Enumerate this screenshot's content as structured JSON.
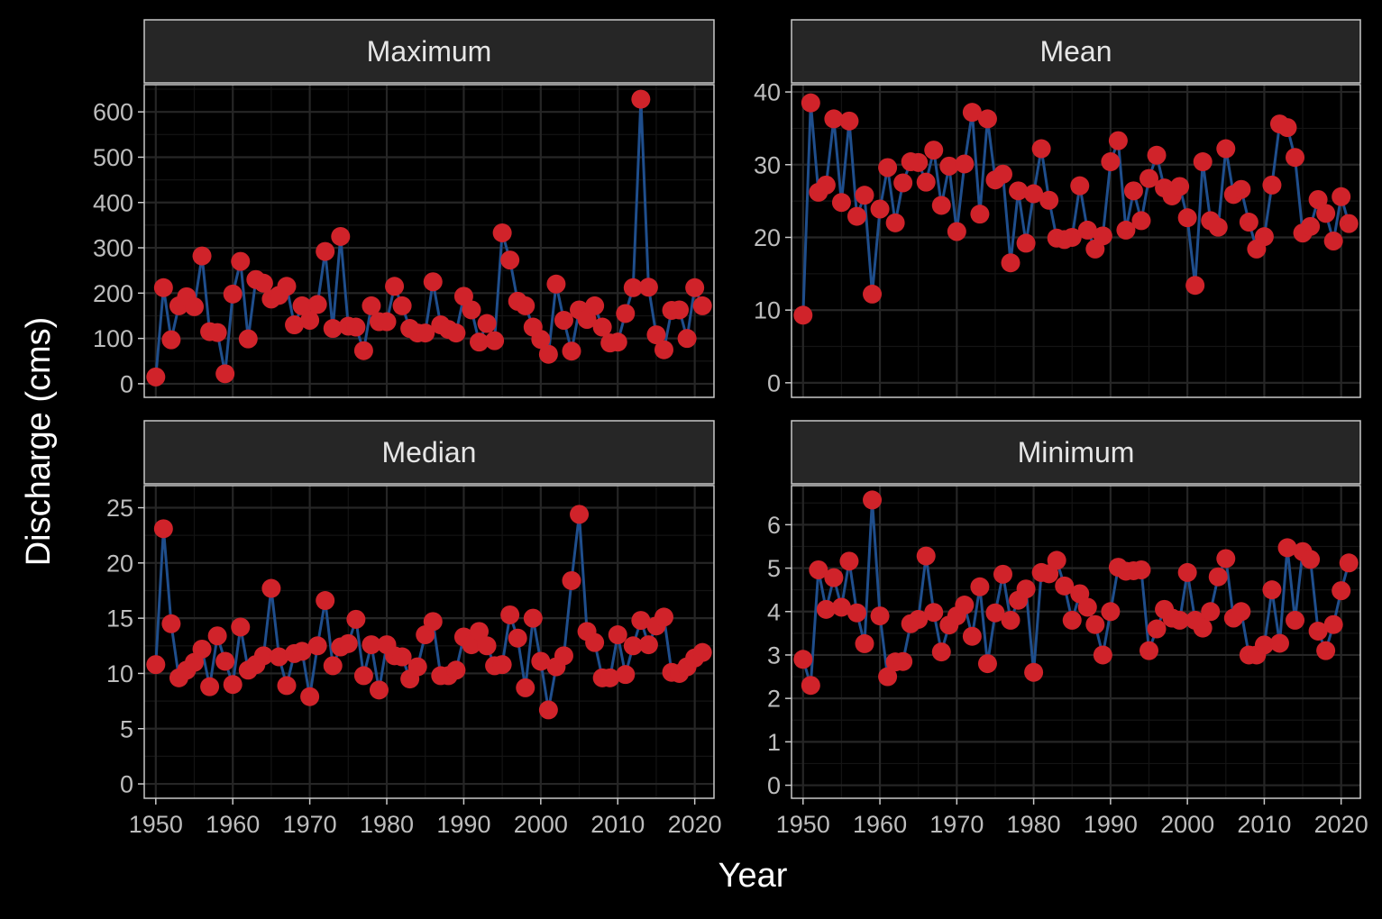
{
  "chart_data": {
    "type": "line",
    "xlabel": "Year",
    "ylabel": "Discharge (cms)",
    "colors": {
      "background": "#000000",
      "panel_border": "#c8c8c8",
      "strip_fill": "#262626",
      "grid_major": "#262626",
      "grid_minor": "#141414",
      "line": "#1f4e8c",
      "point": "#d0232a"
    },
    "x": [
      1950,
      1951,
      1952,
      1953,
      1954,
      1955,
      1956,
      1957,
      1958,
      1959,
      1960,
      1961,
      1962,
      1963,
      1964,
      1965,
      1966,
      1967,
      1968,
      1969,
      1970,
      1971,
      1972,
      1973,
      1974,
      1975,
      1976,
      1977,
      1978,
      1979,
      1980,
      1981,
      1982,
      1983,
      1984,
      1985,
      1986,
      1987,
      1988,
      1989,
      1990,
      1991,
      1992,
      1993,
      1994,
      1995,
      1996,
      1997,
      1998,
      1999,
      2000,
      2001,
      2002,
      2003,
      2004,
      2005,
      2006,
      2007,
      2008,
      2009,
      2010,
      2011,
      2012,
      2013,
      2014,
      2015,
      2016,
      2017,
      2018,
      2019,
      2020,
      2021
    ],
    "x_ticks": [
      1950,
      1960,
      1970,
      1980,
      1990,
      2000,
      2010,
      2020
    ],
    "xlim": [
      1948.5,
      2022.5
    ],
    "panels": [
      {
        "title": "Maximum",
        "ylim": [
          -30,
          660
        ],
        "y_ticks": [
          0,
          100,
          200,
          300,
          400,
          500,
          600
        ],
        "values": [
          15,
          212,
          97,
          172,
          192,
          170,
          282,
          115,
          113,
          22,
          198,
          270,
          99,
          230,
          222,
          187,
          195,
          215,
          130,
          172,
          140,
          175,
          292,
          122,
          325,
          127,
          125,
          73,
          172,
          137,
          137,
          215,
          172,
          122,
          112,
          112,
          225,
          130,
          120,
          112,
          193,
          163,
          92,
          133,
          95,
          333,
          273,
          182,
          172,
          125,
          98,
          65,
          220,
          140,
          72,
          163,
          142,
          172,
          125,
          90,
          92,
          155,
          212,
          628,
          213,
          108,
          75,
          162,
          163,
          100,
          212,
          172
        ]
      },
      {
        "title": "Mean",
        "ylim": [
          -2,
          41
        ],
        "y_ticks": [
          0,
          10,
          20,
          30,
          40
        ],
        "values": [
          9.3,
          38.5,
          26.2,
          27.2,
          36.3,
          24.8,
          36,
          22.9,
          25.8,
          12.2,
          23.9,
          29.6,
          22,
          27.5,
          30.4,
          30.3,
          27.6,
          32,
          24.4,
          29.8,
          20.8,
          30.1,
          37.2,
          23.2,
          36.3,
          27.9,
          28.7,
          16.5,
          26.4,
          19.2,
          26,
          32.2,
          25.1,
          19.9,
          19.7,
          20,
          27.1,
          21,
          18.4,
          20.2,
          30.4,
          33.3,
          21,
          26.4,
          22.3,
          28.1,
          31.3,
          26.8,
          25.7,
          27,
          22.7,
          13.4,
          30.4,
          22.3,
          21.4,
          32.2,
          25.9,
          26.6,
          22.1,
          18.4,
          20.1,
          27.2,
          35.6,
          35.1,
          31,
          20.6,
          21.5,
          25.2,
          23.3,
          19.5,
          25.6,
          21.9
        ]
      },
      {
        "title": "Median",
        "ylim": [
          -1.3,
          27
        ],
        "y_ticks": [
          0,
          5,
          10,
          15,
          20,
          25
        ],
        "values": [
          10.8,
          23.1,
          14.5,
          9.6,
          10.3,
          11,
          12.2,
          8.8,
          13.4,
          11.1,
          9,
          14.2,
          10.3,
          10.8,
          11.6,
          17.7,
          11.5,
          8.9,
          11.8,
          12,
          7.9,
          12.5,
          16.6,
          10.7,
          12.4,
          12.7,
          14.9,
          9.8,
          12.6,
          8.5,
          12.6,
          11.6,
          11.5,
          9.5,
          10.6,
          13.5,
          14.7,
          9.8,
          9.8,
          10.3,
          13.3,
          12.6,
          13.8,
          12.5,
          10.7,
          10.8,
          15.3,
          13.2,
          8.7,
          15,
          11.1,
          6.7,
          10.6,
          11.6,
          18.4,
          24.4,
          13.8,
          12.8,
          9.6,
          9.6,
          13.5,
          9.9,
          12.5,
          14.8,
          12.6,
          14.3,
          15.1,
          10.1,
          10,
          10.6,
          11.4,
          11.9
        ]
      },
      {
        "title": "Minimum",
        "ylim": [
          -0.3,
          6.9
        ],
        "y_ticks": [
          0,
          1,
          2,
          3,
          4,
          5,
          6
        ],
        "values": [
          2.9,
          2.3,
          4.96,
          4.05,
          4.78,
          4.1,
          5.16,
          3.97,
          3.26,
          6.57,
          3.9,
          2.5,
          2.84,
          2.85,
          3.72,
          3.82,
          5.28,
          3.98,
          3.07,
          3.69,
          3.9,
          4.15,
          3.43,
          4.57,
          2.8,
          3.97,
          4.86,
          3.8,
          4.26,
          4.52,
          2.6,
          4.9,
          4.87,
          5.18,
          4.59,
          3.8,
          4.41,
          4.1,
          3.7,
          3,
          4,
          5.02,
          4.93,
          4.94,
          4.96,
          3.1,
          3.6,
          4.05,
          3.85,
          3.8,
          4.9,
          3.8,
          3.62,
          4,
          4.8,
          5.22,
          3.85,
          4,
          3,
          3,
          3.23,
          4.5,
          3.27,
          5.47,
          3.8,
          5.38,
          5.2,
          3.55,
          3.1,
          3.7,
          4.48,
          5.12
        ]
      }
    ]
  }
}
